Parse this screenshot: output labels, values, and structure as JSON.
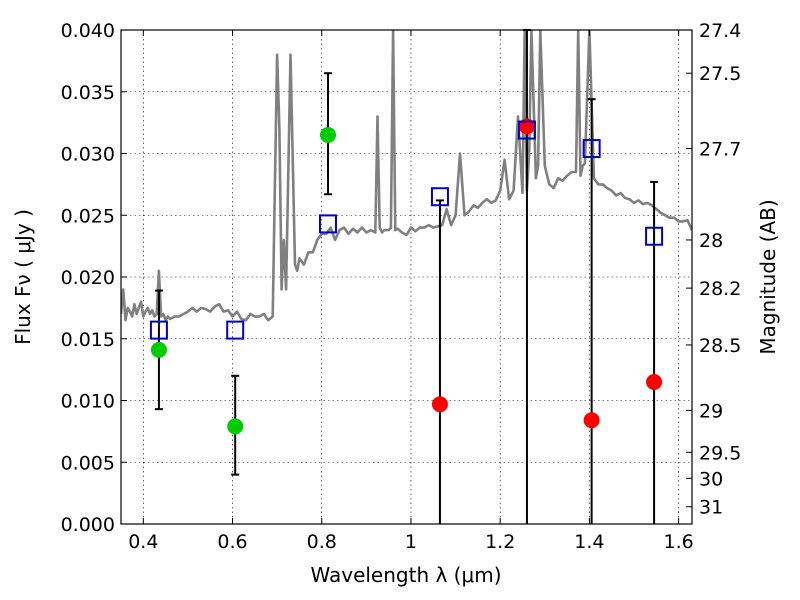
{
  "chart_data": {
    "type": "scatter",
    "title": "",
    "xlabel": "Wavelength  λ (μm)",
    "ylabel": "Flux  Fν  ( μJy )",
    "y2label": "Magnitude (AB)",
    "xlim": [
      0.35,
      1.63
    ],
    "ylim": [
      0.0,
      0.04
    ],
    "grid": true,
    "x_ticks": [
      0.4,
      0.6,
      0.8,
      1.0,
      1.2,
      1.4,
      1.6
    ],
    "x_tick_labels": [
      "0.4",
      "0.6",
      "0.8",
      "1",
      "1.2",
      "1.4",
      "1.6"
    ],
    "y_ticks": [
      0.0,
      0.005,
      0.01,
      0.015,
      0.02,
      0.025,
      0.03,
      0.035,
      0.04
    ],
    "y_tick_labels": [
      "0.000",
      "0.005",
      "0.010",
      "0.015",
      "0.020",
      "0.025",
      "0.030",
      "0.035",
      "0.040"
    ],
    "y2_ticks": [
      {
        "label": "27.4",
        "flux": 0.04
      },
      {
        "label": "27.5",
        "flux": 0.0365
      },
      {
        "label": "27.7",
        "flux": 0.0304
      },
      {
        "label": "28",
        "flux": 0.023
      },
      {
        "label": "28.2",
        "flux": 0.0191
      },
      {
        "label": "28.5",
        "flux": 0.0145
      },
      {
        "label": "29",
        "flux": 0.0092
      },
      {
        "label": "29.5",
        "flux": 0.0058
      },
      {
        "label": "30",
        "flux": 0.0037
      },
      {
        "label": "31",
        "flux": 0.0014
      }
    ],
    "series": [
      {
        "marker": "circle",
        "color": "#00cc00",
        "points": [
          {
            "x": 0.435,
            "y": 0.0141,
            "ylow": 0.0093,
            "yhigh": 0.0189
          },
          {
            "x": 0.606,
            "y": 0.0079,
            "ylow": 0.004,
            "yhigh": 0.012
          },
          {
            "x": 0.814,
            "y": 0.0315,
            "ylow": 0.0267,
            "yhigh": 0.0365
          }
        ]
      },
      {
        "marker": "circle",
        "color": "#ff0000",
        "points": [
          {
            "x": 1.065,
            "y": 0.0097,
            "ylow": 0.0,
            "yhigh": 0.0262
          },
          {
            "x": 1.26,
            "y": 0.0322,
            "ylow": 0.0,
            "yhigh": 0.04
          },
          {
            "x": 1.405,
            "y": 0.0084,
            "ylow": 0.0,
            "yhigh": 0.0344
          },
          {
            "x": 1.545,
            "y": 0.0115,
            "ylow": 0.0,
            "yhigh": 0.0277
          }
        ]
      },
      {
        "marker": "square",
        "color": "#0000cc",
        "points": [
          {
            "x": 0.435,
            "y": 0.0157
          },
          {
            "x": 0.606,
            "y": 0.0157
          },
          {
            "x": 0.814,
            "y": 0.0243
          },
          {
            "x": 1.065,
            "y": 0.0265
          },
          {
            "x": 1.26,
            "y": 0.0319
          },
          {
            "x": 1.405,
            "y": 0.0304
          },
          {
            "x": 1.545,
            "y": 0.0233
          }
        ]
      }
    ],
    "spectrum": {
      "color": "#808080",
      "x": [
        0.35,
        0.355,
        0.36,
        0.365,
        0.37,
        0.375,
        0.38,
        0.385,
        0.39,
        0.395,
        0.4,
        0.405,
        0.41,
        0.415,
        0.42,
        0.425,
        0.43,
        0.435,
        0.44,
        0.445,
        0.45,
        0.455,
        0.46,
        0.47,
        0.48,
        0.49,
        0.5,
        0.51,
        0.52,
        0.53,
        0.54,
        0.55,
        0.56,
        0.57,
        0.58,
        0.59,
        0.6,
        0.61,
        0.62,
        0.63,
        0.64,
        0.65,
        0.66,
        0.67,
        0.68,
        0.69,
        0.7,
        0.705,
        0.71,
        0.715,
        0.72,
        0.73,
        0.74,
        0.745,
        0.75,
        0.76,
        0.77,
        0.78,
        0.79,
        0.8,
        0.81,
        0.82,
        0.83,
        0.84,
        0.85,
        0.86,
        0.87,
        0.88,
        0.89,
        0.9,
        0.91,
        0.92,
        0.925,
        0.93,
        0.935,
        0.94,
        0.95,
        0.955,
        0.96,
        0.965,
        0.97,
        0.98,
        0.99,
        1.0,
        1.01,
        1.02,
        1.03,
        1.04,
        1.05,
        1.06,
        1.07,
        1.08,
        1.09,
        1.1,
        1.11,
        1.12,
        1.13,
        1.14,
        1.15,
        1.16,
        1.17,
        1.18,
        1.19,
        1.2,
        1.21,
        1.22,
        1.23,
        1.24,
        1.25,
        1.255,
        1.26,
        1.265,
        1.27,
        1.28,
        1.285,
        1.29,
        1.3,
        1.31,
        1.32,
        1.33,
        1.34,
        1.35,
        1.36,
        1.37,
        1.375,
        1.38,
        1.385,
        1.39,
        1.4,
        1.41,
        1.42,
        1.43,
        1.44,
        1.45,
        1.46,
        1.47,
        1.48,
        1.49,
        1.5,
        1.51,
        1.52,
        1.53,
        1.54,
        1.55,
        1.56,
        1.57,
        1.58,
        1.59,
        1.6,
        1.61,
        1.62,
        1.63
      ],
      "y": [
        0.017,
        0.019,
        0.0165,
        0.0175,
        0.0172,
        0.0168,
        0.0178,
        0.017,
        0.0175,
        0.018,
        0.0168,
        0.0172,
        0.0175,
        0.017,
        0.0173,
        0.0168,
        0.017,
        0.0205,
        0.0168,
        0.017,
        0.0165,
        0.0168,
        0.0166,
        0.0168,
        0.0168,
        0.017,
        0.0172,
        0.0175,
        0.0172,
        0.0175,
        0.0174,
        0.0172,
        0.0176,
        0.0178,
        0.0172,
        0.0173,
        0.0168,
        0.0172,
        0.0166,
        0.0165,
        0.017,
        0.0168,
        0.0168,
        0.017,
        0.0165,
        0.0168,
        0.038,
        0.032,
        0.019,
        0.023,
        0.019,
        0.038,
        0.021,
        0.0205,
        0.0215,
        0.021,
        0.022,
        0.022,
        0.023,
        0.0235,
        0.0235,
        0.024,
        0.023,
        0.0238,
        0.024,
        0.0235,
        0.0239,
        0.0236,
        0.024,
        0.0236,
        0.0238,
        0.0236,
        0.033,
        0.024,
        0.0236,
        0.0238,
        0.0238,
        0.024,
        0.04,
        0.0238,
        0.0239,
        0.0236,
        0.0234,
        0.024,
        0.0237,
        0.024,
        0.024,
        0.0242,
        0.024,
        0.0241,
        0.0242,
        0.0255,
        0.0242,
        0.025,
        0.03,
        0.025,
        0.0253,
        0.0258,
        0.0256,
        0.026,
        0.0263,
        0.026,
        0.0262,
        0.027,
        0.0295,
        0.0263,
        0.027,
        0.033,
        0.0268,
        0.04,
        0.027,
        0.03,
        0.04,
        0.028,
        0.029,
        0.04,
        0.029,
        0.0275,
        0.0272,
        0.028,
        0.0278,
        0.0282,
        0.0285,
        0.0285,
        0.04,
        0.0282,
        0.029,
        0.0292,
        0.04,
        0.028,
        0.0275,
        0.0275,
        0.0272,
        0.027,
        0.0266,
        0.0268,
        0.0264,
        0.0263,
        0.026,
        0.0262,
        0.0259,
        0.026,
        0.0258,
        0.0255,
        0.0252,
        0.025,
        0.0248,
        0.0248,
        0.0245,
        0.0245,
        0.0246,
        0.0238
      ]
    }
  }
}
